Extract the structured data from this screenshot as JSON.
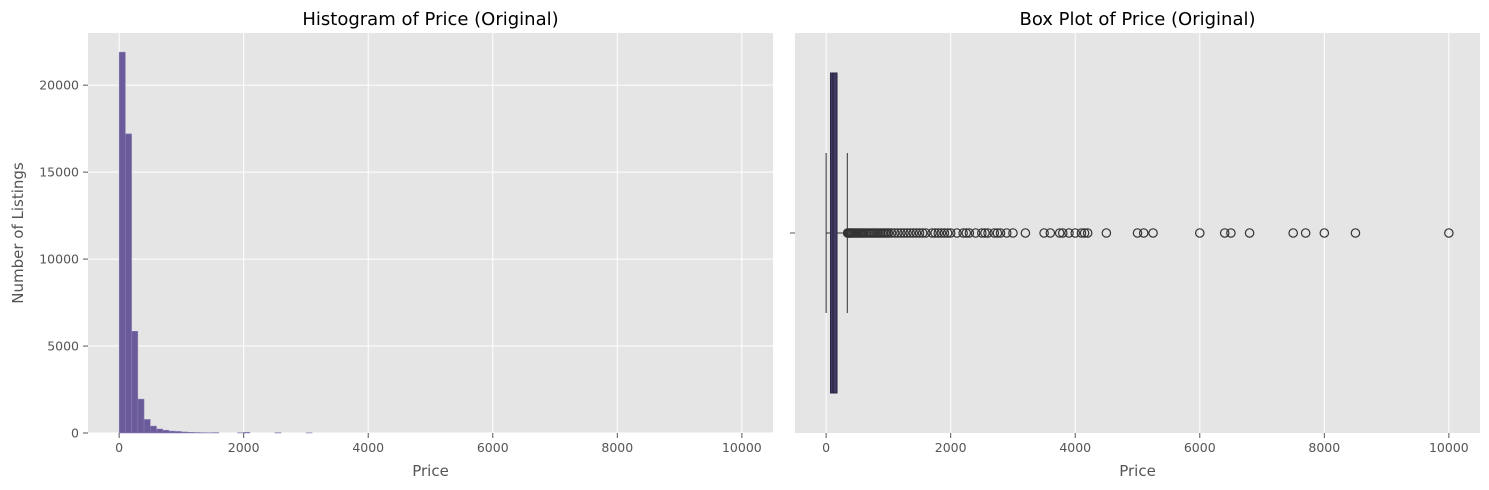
{
  "chart_data": [
    {
      "type": "bar",
      "title": "Histogram of Price (Original)",
      "xlabel": "Price",
      "ylabel": "Number of Listings",
      "xlim": [
        -500,
        10500
      ],
      "ylim": [
        0,
        23000
      ],
      "xticks": [
        0,
        2000,
        4000,
        6000,
        8000,
        10000
      ],
      "yticks": [
        0,
        5000,
        10000,
        15000,
        20000
      ],
      "grid": true,
      "bin_width": 100,
      "bins": [
        {
          "x0": 0,
          "count": 21900
        },
        {
          "x0": 100,
          "count": 17200
        },
        {
          "x0": 200,
          "count": 5850
        },
        {
          "x0": 300,
          "count": 1950
        },
        {
          "x0": 400,
          "count": 780
        },
        {
          "x0": 500,
          "count": 400
        },
        {
          "x0": 600,
          "count": 230
        },
        {
          "x0": 700,
          "count": 160
        },
        {
          "x0": 800,
          "count": 110
        },
        {
          "x0": 900,
          "count": 90
        },
        {
          "x0": 1000,
          "count": 60
        },
        {
          "x0": 1100,
          "count": 40
        },
        {
          "x0": 1200,
          "count": 30
        },
        {
          "x0": 1300,
          "count": 20
        },
        {
          "x0": 1400,
          "count": 15
        },
        {
          "x0": 1500,
          "count": 25
        },
        {
          "x0": 1900,
          "count": 15
        },
        {
          "x0": 2000,
          "count": 40
        },
        {
          "x0": 2500,
          "count": 20
        },
        {
          "x0": 3000,
          "count": 10
        }
      ],
      "bar_color": "#6b5b9a"
    },
    {
      "type": "box",
      "title": "Box Plot of Price (Original)",
      "xlabel": "Price",
      "xlim": [
        -500,
        10500
      ],
      "xticks": [
        0,
        2000,
        4000,
        6000,
        8000,
        10000
      ],
      "grid": true,
      "box": {
        "whisker_low": 0,
        "q1": 70,
        "median": 110,
        "q3": 175,
        "whisker_high": 340
      },
      "outliers": [
        345,
        360,
        375,
        390,
        405,
        420,
        440,
        460,
        480,
        500,
        520,
        540,
        560,
        580,
        600,
        625,
        650,
        675,
        700,
        725,
        750,
        775,
        800,
        825,
        850,
        875,
        900,
        925,
        950,
        975,
        1000,
        1050,
        1100,
        1150,
        1200,
        1250,
        1300,
        1350,
        1400,
        1450,
        1500,
        1550,
        1600,
        1700,
        1750,
        1800,
        1850,
        1900,
        1950,
        2000,
        2100,
        2200,
        2250,
        2300,
        2400,
        2500,
        2550,
        2600,
        2700,
        2750,
        2800,
        2900,
        3000,
        3200,
        3500,
        3600,
        3750,
        3800,
        3900,
        4000,
        4100,
        4150,
        4200,
        4500,
        5000,
        5100,
        5250,
        6000,
        6400,
        6500,
        6800,
        7500,
        7700,
        8000,
        8500,
        10000
      ],
      "box_color": "#3f3a63"
    }
  ]
}
